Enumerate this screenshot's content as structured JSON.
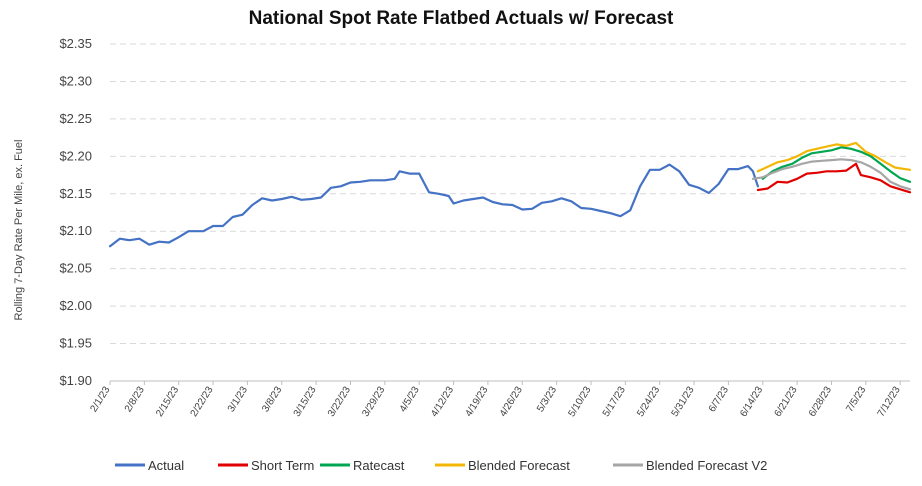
{
  "chart_data": {
    "type": "line",
    "title": "National Spot Rate Flatbed Actuals w/ Forecast",
    "xlabel": "",
    "ylabel": "Rolling 7-Day Rate Per Mile, ex. Fuel",
    "ylim": [
      1.9,
      2.35
    ],
    "y_ticks": [
      "$2.35",
      "$2.30",
      "$2.25",
      "$2.20",
      "$2.15",
      "$2.10",
      "$2.05",
      "$2.00",
      "$1.95",
      "$1.90"
    ],
    "y_tick_values": [
      2.35,
      2.3,
      2.25,
      2.2,
      2.15,
      2.1,
      2.05,
      2.0,
      1.95,
      1.9
    ],
    "x_ticks": [
      "2/1/23",
      "2/8/23",
      "2/15/23",
      "2/22/23",
      "3/1/23",
      "3/8/23",
      "3/15/23",
      "3/22/23",
      "3/29/23",
      "4/5/23",
      "4/12/23",
      "4/19/23",
      "4/26/23",
      "5/3/23",
      "5/10/23",
      "5/17/23",
      "5/24/23",
      "5/31/23",
      "6/7/23",
      "6/14/23",
      "6/21/23",
      "6/28/23",
      "7/5/23",
      "7/12/23"
    ],
    "x_range": [
      "2/1/23",
      "7/14/23"
    ],
    "grid": "horizontal",
    "legend_position": "bottom",
    "series": [
      {
        "name": "Actual",
        "color": "#4472C4",
        "points": [
          [
            "2/1/23",
            2.08
          ],
          [
            "2/3/23",
            2.09
          ],
          [
            "2/5/23",
            2.088
          ],
          [
            "2/7/23",
            2.09
          ],
          [
            "2/9/23",
            2.082
          ],
          [
            "2/11/23",
            2.086
          ],
          [
            "2/13/23",
            2.085
          ],
          [
            "2/15/23",
            2.092
          ],
          [
            "2/17/23",
            2.1
          ],
          [
            "2/20/23",
            2.1
          ],
          [
            "2/22/23",
            2.107
          ],
          [
            "2/24/23",
            2.107
          ],
          [
            "2/26/23",
            2.119
          ],
          [
            "2/28/23",
            2.122
          ],
          [
            "3/2/23",
            2.135
          ],
          [
            "3/4/23",
            2.144
          ],
          [
            "3/6/23",
            2.141
          ],
          [
            "3/8/23",
            2.143
          ],
          [
            "3/10/23",
            2.146
          ],
          [
            "3/12/23",
            2.142
          ],
          [
            "3/14/23",
            2.143
          ],
          [
            "3/16/23",
            2.145
          ],
          [
            "3/18/23",
            2.158
          ],
          [
            "3/20/23",
            2.16
          ],
          [
            "3/22/23",
            2.165
          ],
          [
            "3/24/23",
            2.166
          ],
          [
            "3/26/23",
            2.168
          ],
          [
            "3/29/23",
            2.168
          ],
          [
            "3/31/23",
            2.17
          ],
          [
            "4/1/23",
            2.18
          ],
          [
            "4/3/23",
            2.177
          ],
          [
            "4/5/23",
            2.177
          ],
          [
            "4/7/23",
            2.152
          ],
          [
            "4/9/23",
            2.15
          ],
          [
            "4/11/23",
            2.147
          ],
          [
            "4/12/23",
            2.137
          ],
          [
            "4/14/23",
            2.141
          ],
          [
            "4/16/23",
            2.143
          ],
          [
            "4/18/23",
            2.145
          ],
          [
            "4/20/23",
            2.139
          ],
          [
            "4/22/23",
            2.136
          ],
          [
            "4/24/23",
            2.135
          ],
          [
            "4/26/23",
            2.129
          ],
          [
            "4/28/23",
            2.13
          ],
          [
            "4/30/23",
            2.138
          ],
          [
            "5/2/23",
            2.14
          ],
          [
            "5/4/23",
            2.144
          ],
          [
            "5/6/23",
            2.14
          ],
          [
            "5/8/23",
            2.131
          ],
          [
            "5/10/23",
            2.13
          ],
          [
            "5/12/23",
            2.127
          ],
          [
            "5/14/23",
            2.124
          ],
          [
            "5/16/23",
            2.12
          ],
          [
            "5/18/23",
            2.128
          ],
          [
            "5/20/23",
            2.16
          ],
          [
            "5/22/23",
            2.182
          ],
          [
            "5/24/23",
            2.182
          ],
          [
            "5/26/23",
            2.189
          ],
          [
            "5/28/23",
            2.18
          ],
          [
            "5/30/23",
            2.162
          ],
          [
            "6/1/23",
            2.158
          ],
          [
            "6/3/23",
            2.151
          ],
          [
            "6/5/23",
            2.163
          ],
          [
            "6/7/23",
            2.183
          ],
          [
            "6/9/23",
            2.183
          ],
          [
            "6/11/23",
            2.187
          ],
          [
            "6/12/23",
            2.18
          ],
          [
            "6/13/23",
            2.16
          ]
        ]
      },
      {
        "name": "Short Term",
        "color": "#E00000",
        "points": [
          [
            "6/13/23",
            2.155
          ],
          [
            "6/15/23",
            2.157
          ],
          [
            "6/17/23",
            2.166
          ],
          [
            "6/19/23",
            2.165
          ],
          [
            "6/21/23",
            2.17
          ],
          [
            "6/23/23",
            2.177
          ],
          [
            "6/25/23",
            2.178
          ],
          [
            "6/27/23",
            2.18
          ],
          [
            "6/29/23",
            2.18
          ],
          [
            "7/1/23",
            2.181
          ],
          [
            "7/3/23",
            2.19
          ],
          [
            "7/4/23",
            2.175
          ],
          [
            "7/6/23",
            2.172
          ],
          [
            "7/8/23",
            2.168
          ],
          [
            "7/10/23",
            2.16
          ],
          [
            "7/12/23",
            2.156
          ],
          [
            "7/14/23",
            2.152
          ]
        ]
      },
      {
        "name": "Ratecast",
        "color": "#00A651",
        "points": [
          [
            "6/14/23",
            2.17
          ],
          [
            "6/16/23",
            2.18
          ],
          [
            "6/18/23",
            2.186
          ],
          [
            "6/20/23",
            2.19
          ],
          [
            "6/22/23",
            2.198
          ],
          [
            "6/24/23",
            2.204
          ],
          [
            "6/26/23",
            2.206
          ],
          [
            "6/28/23",
            2.208
          ],
          [
            "6/30/23",
            2.212
          ],
          [
            "7/2/23",
            2.21
          ],
          [
            "7/4/23",
            2.206
          ],
          [
            "7/6/23",
            2.2
          ],
          [
            "7/8/23",
            2.19
          ],
          [
            "7/10/23",
            2.18
          ],
          [
            "7/12/23",
            2.171
          ],
          [
            "7/14/23",
            2.166
          ]
        ]
      },
      {
        "name": "Blended Forecast",
        "color": "#F2B705",
        "points": [
          [
            "6/13/23",
            2.18
          ],
          [
            "6/15/23",
            2.186
          ],
          [
            "6/17/23",
            2.192
          ],
          [
            "6/19/23",
            2.195
          ],
          [
            "6/21/23",
            2.2
          ],
          [
            "6/23/23",
            2.207
          ],
          [
            "6/25/23",
            2.21
          ],
          [
            "6/27/23",
            2.213
          ],
          [
            "6/29/23",
            2.216
          ],
          [
            "7/1/23",
            2.214
          ],
          [
            "7/3/23",
            2.218
          ],
          [
            "7/5/23",
            2.206
          ],
          [
            "7/7/23",
            2.2
          ],
          [
            "7/9/23",
            2.192
          ],
          [
            "7/11/23",
            2.185
          ],
          [
            "7/14/23",
            2.182
          ]
        ]
      },
      {
        "name": "Blended Forecast V2",
        "color": "#A6A6A6",
        "points": [
          [
            "6/12/23",
            2.17
          ],
          [
            "6/14/23",
            2.172
          ],
          [
            "6/16/23",
            2.178
          ],
          [
            "6/18/23",
            2.183
          ],
          [
            "6/20/23",
            2.186
          ],
          [
            "6/22/23",
            2.19
          ],
          [
            "6/24/23",
            2.193
          ],
          [
            "6/26/23",
            2.194
          ],
          [
            "6/28/23",
            2.195
          ],
          [
            "6/30/23",
            2.196
          ],
          [
            "7/2/23",
            2.195
          ],
          [
            "7/4/23",
            2.192
          ],
          [
            "7/6/23",
            2.186
          ],
          [
            "7/8/23",
            2.178
          ],
          [
            "7/10/23",
            2.166
          ],
          [
            "7/12/23",
            2.16
          ],
          [
            "7/14/23",
            2.156
          ]
        ]
      }
    ]
  }
}
